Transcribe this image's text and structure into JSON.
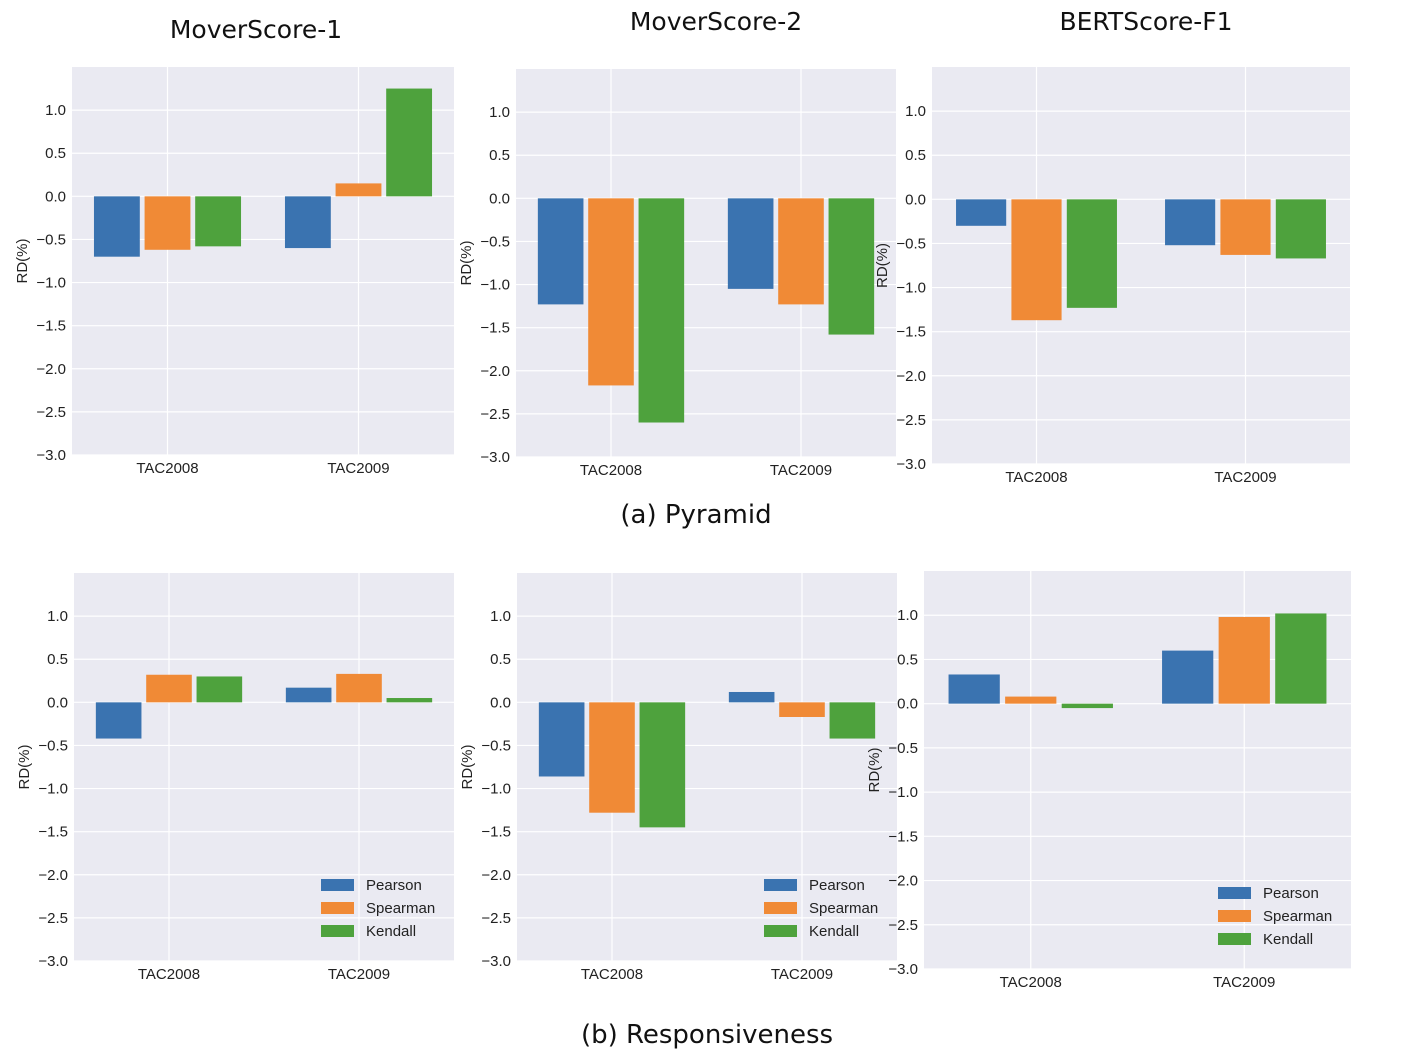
{
  "column_titles": [
    "MoverScore-1",
    "MoverScore-2",
    "BERTScore-F1"
  ],
  "captions": {
    "pyramid": "(a) Pyramid",
    "responsiveness": "(b) Responsiveness"
  },
  "legend": [
    "Pearson",
    "Spearman",
    "Kendall"
  ],
  "colors": {
    "Pearson": "#3a73b0",
    "Spearman": "#f08a36",
    "Kendall": "#4ea23d",
    "panel_bg": "#eaeaf2",
    "grid": "#ffffff"
  },
  "chart_data": [
    {
      "type": "bar",
      "row": "Pyramid",
      "metric": "MoverScore-1",
      "ylabel": "RD(%)",
      "ylim": [
        -3.0,
        1.5
      ],
      "yticks": [
        "1.0",
        "0.5",
        "0.0",
        "−0.5",
        "−1.0",
        "−1.5",
        "−2.0",
        "−2.5",
        "−3.0"
      ],
      "ytick_values": [
        1.0,
        0.5,
        0.0,
        -0.5,
        -1.0,
        -1.5,
        -2.0,
        -2.5,
        -3.0
      ],
      "categories": [
        "TAC2008",
        "TAC2009"
      ],
      "series": [
        {
          "name": "Pearson",
          "values": [
            -0.7,
            -0.6
          ]
        },
        {
          "name": "Spearman",
          "values": [
            -0.62,
            0.15
          ]
        },
        {
          "name": "Kendall",
          "values": [
            -0.58,
            1.25
          ]
        }
      ],
      "show_legend": false
    },
    {
      "type": "bar",
      "row": "Pyramid",
      "metric": "MoverScore-2",
      "ylabel": "RD(%)",
      "ylim": [
        -3.0,
        1.5
      ],
      "yticks": [
        "1.0",
        "0.5",
        "0.0",
        "−0.5",
        "−1.0",
        "−1.5",
        "−2.0",
        "−2.5",
        "−3.0"
      ],
      "ytick_values": [
        1.0,
        0.5,
        0.0,
        -0.5,
        -1.0,
        -1.5,
        -2.0,
        -2.5,
        -3.0
      ],
      "categories": [
        "TAC2008",
        "TAC2009"
      ],
      "series": [
        {
          "name": "Pearson",
          "values": [
            -1.23,
            -1.05
          ]
        },
        {
          "name": "Spearman",
          "values": [
            -2.17,
            -1.23
          ]
        },
        {
          "name": "Kendall",
          "values": [
            -2.6,
            -1.58
          ]
        }
      ],
      "show_legend": false
    },
    {
      "type": "bar",
      "row": "Pyramid",
      "metric": "BERTScore-F1",
      "ylabel": "RD(%)",
      "ylim": [
        -3.0,
        1.5
      ],
      "yticks": [
        "1.0",
        "0.5",
        "0.0",
        "−0.5",
        "−1.0",
        "−1.5",
        "−2.0",
        "−2.5",
        "−3.0"
      ],
      "ytick_values": [
        1.0,
        0.5,
        0.0,
        -0.5,
        -1.0,
        -1.5,
        -2.0,
        -2.5,
        -3.0
      ],
      "categories": [
        "TAC2008",
        "TAC2009"
      ],
      "series": [
        {
          "name": "Pearson",
          "values": [
            -0.3,
            -0.52
          ]
        },
        {
          "name": "Spearman",
          "values": [
            -1.37,
            -0.63
          ]
        },
        {
          "name": "Kendall",
          "values": [
            -1.23,
            -0.67
          ]
        }
      ],
      "show_legend": false
    },
    {
      "type": "bar",
      "row": "Responsiveness",
      "metric": "MoverScore-1",
      "ylabel": "RD(%)",
      "ylim": [
        -3.0,
        1.5
      ],
      "yticks": [
        "1.0",
        "0.5",
        "0.0",
        "−0.5",
        "−1.0",
        "−1.5",
        "−2.0",
        "−2.5",
        "−3.0"
      ],
      "ytick_values": [
        1.0,
        0.5,
        0.0,
        -0.5,
        -1.0,
        -1.5,
        -2.0,
        -2.5,
        -3.0
      ],
      "categories": [
        "TAC2008",
        "TAC2009"
      ],
      "series": [
        {
          "name": "Pearson",
          "values": [
            -0.42,
            0.17
          ]
        },
        {
          "name": "Spearman",
          "values": [
            0.32,
            0.33
          ]
        },
        {
          "name": "Kendall",
          "values": [
            0.3,
            0.05
          ]
        }
      ],
      "show_legend": true,
      "legend_position": "lower right"
    },
    {
      "type": "bar",
      "row": "Responsiveness",
      "metric": "MoverScore-2",
      "ylabel": "RD(%)",
      "ylim": [
        -3.0,
        1.5
      ],
      "yticks": [
        "1.0",
        "0.5",
        "0.0",
        "−0.5",
        "−1.0",
        "−1.5",
        "−2.0",
        "−2.5",
        "−3.0"
      ],
      "ytick_values": [
        1.0,
        0.5,
        0.0,
        -0.5,
        -1.0,
        -1.5,
        -2.0,
        -2.5,
        -3.0
      ],
      "categories": [
        "TAC2008",
        "TAC2009"
      ],
      "series": [
        {
          "name": "Pearson",
          "values": [
            -0.86,
            0.12
          ]
        },
        {
          "name": "Spearman",
          "values": [
            -1.28,
            -0.17
          ]
        },
        {
          "name": "Kendall",
          "values": [
            -1.45,
            -0.42
          ]
        }
      ],
      "show_legend": true,
      "legend_position": "lower right"
    },
    {
      "type": "bar",
      "row": "Responsiveness",
      "metric": "BERTScore-F1",
      "ylabel": "RD(%)",
      "ylim": [
        -3.0,
        1.5
      ],
      "yticks": [
        "1.0",
        "0.5",
        "0.0",
        "−0.5",
        "−1.0",
        "−1.5",
        "−2.0",
        "−2.5",
        "−3.0"
      ],
      "ytick_values": [
        1.0,
        0.5,
        0.0,
        -0.5,
        -1.0,
        -1.5,
        -2.0,
        -2.5,
        -3.0
      ],
      "categories": [
        "TAC2008",
        "TAC2009"
      ],
      "series": [
        {
          "name": "Pearson",
          "values": [
            0.33,
            0.6
          ]
        },
        {
          "name": "Spearman",
          "values": [
            0.08,
            0.98
          ]
        },
        {
          "name": "Kendall",
          "values": [
            -0.05,
            1.02
          ]
        }
      ],
      "show_legend": true,
      "legend_position": "lower right"
    }
  ]
}
